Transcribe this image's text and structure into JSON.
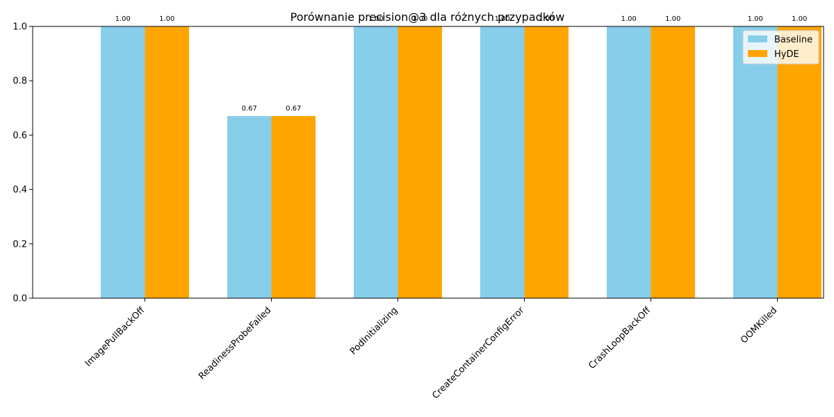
{
  "chart_data": {
    "type": "bar",
    "title": "Porównanie precision@3 dla różnych przypadków",
    "xlabel": "",
    "ylabel": "",
    "categories": [
      "ImagePullBackOff",
      "ReadinessProbeFailed",
      "PodInitializing",
      "CreateContainerConfigError",
      "CrashLoopBackOff",
      "OOMKilled"
    ],
    "series": [
      {
        "name": "Baseline",
        "values": [
          1.0,
          0.67,
          1.0,
          1.0,
          1.0,
          1.0
        ],
        "labels": [
          "1.00",
          "0.67",
          "1.00",
          "1.00",
          "1.00",
          "1.00"
        ],
        "color": "#87ceeb"
      },
      {
        "name": "HyDE",
        "values": [
          1.0,
          0.67,
          1.0,
          1.0,
          1.0,
          1.0
        ],
        "labels": [
          "1.00",
          "0.67",
          "1.00",
          "1.00",
          "1.00",
          "1.00"
        ],
        "color": "#ffa500"
      }
    ],
    "ylim": [
      0,
      1.0
    ],
    "yticks": [
      "0.0",
      "0.2",
      "0.4",
      "0.6",
      "0.8",
      "1.0"
    ],
    "grid": false,
    "legend_position": "top-right"
  }
}
